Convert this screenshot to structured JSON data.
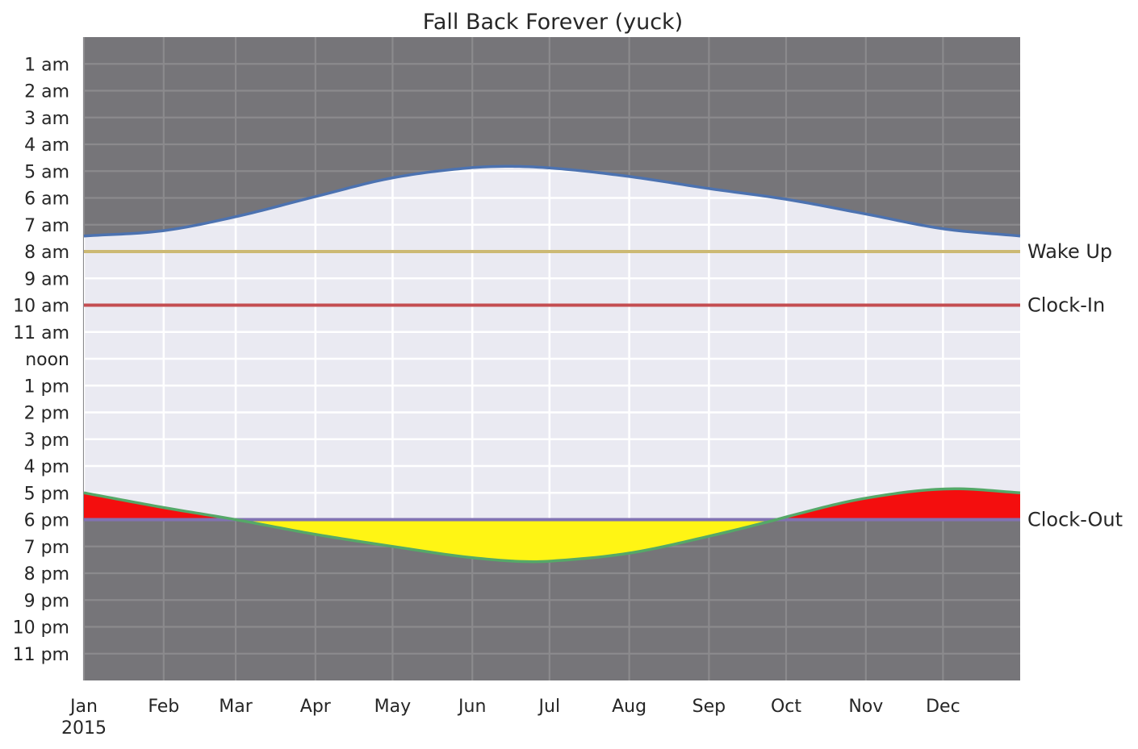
{
  "chart_data": {
    "type": "area",
    "title": "Fall Back Forever (yuck)",
    "xlabel": "",
    "ylabel": "",
    "x_range": [
      "2015-01-01",
      "2015-12-31"
    ],
    "x_ticks": [
      {
        "date": "2015-01-01",
        "label": "Jan",
        "sublabel": "2015"
      },
      {
        "date": "2015-02-01",
        "label": "Feb"
      },
      {
        "date": "2015-03-01",
        "label": "Mar"
      },
      {
        "date": "2015-04-01",
        "label": "Apr"
      },
      {
        "date": "2015-05-01",
        "label": "May"
      },
      {
        "date": "2015-06-01",
        "label": "Jun"
      },
      {
        "date": "2015-07-01",
        "label": "Jul"
      },
      {
        "date": "2015-08-01",
        "label": "Aug"
      },
      {
        "date": "2015-09-01",
        "label": "Sep"
      },
      {
        "date": "2015-10-01",
        "label": "Oct"
      },
      {
        "date": "2015-11-01",
        "label": "Nov"
      },
      {
        "date": "2015-12-01",
        "label": "Dec"
      }
    ],
    "y_axis": {
      "inverted": true,
      "ylim": [
        0,
        24
      ],
      "ticks": [
        {
          "hour": 1,
          "label": "1 am"
        },
        {
          "hour": 2,
          "label": "2 am"
        },
        {
          "hour": 3,
          "label": "3 am"
        },
        {
          "hour": 4,
          "label": "4 am"
        },
        {
          "hour": 5,
          "label": "5 am"
        },
        {
          "hour": 6,
          "label": "6 am"
        },
        {
          "hour": 7,
          "label": "7 am"
        },
        {
          "hour": 8,
          "label": "8 am"
        },
        {
          "hour": 9,
          "label": "9 am"
        },
        {
          "hour": 10,
          "label": "10 am"
        },
        {
          "hour": 11,
          "label": "11 am"
        },
        {
          "hour": 12,
          "label": "noon"
        },
        {
          "hour": 13,
          "label": "1 pm"
        },
        {
          "hour": 14,
          "label": "2 pm"
        },
        {
          "hour": 15,
          "label": "3 pm"
        },
        {
          "hour": 16,
          "label": "4 pm"
        },
        {
          "hour": 17,
          "label": "5 pm"
        },
        {
          "hour": 18,
          "label": "6 pm"
        },
        {
          "hour": 19,
          "label": "7 pm"
        },
        {
          "hour": 20,
          "label": "8 pm"
        },
        {
          "hour": 21,
          "label": "9 pm"
        },
        {
          "hour": 22,
          "label": "10 pm"
        },
        {
          "hour": 23,
          "label": "11 pm"
        }
      ]
    },
    "grid": true,
    "series": [
      {
        "role": "sunrise",
        "color": "#4c72b0",
        "points": [
          [
            "2015-01-01",
            7.42
          ],
          [
            "2015-02-01",
            7.22
          ],
          [
            "2015-03-01",
            6.7
          ],
          [
            "2015-04-01",
            5.95
          ],
          [
            "2015-05-01",
            5.25
          ],
          [
            "2015-06-01",
            4.87
          ],
          [
            "2015-06-15",
            4.82
          ],
          [
            "2015-07-01",
            4.88
          ],
          [
            "2015-08-01",
            5.2
          ],
          [
            "2015-09-01",
            5.65
          ],
          [
            "2015-10-01",
            6.05
          ],
          [
            "2015-11-01",
            6.6
          ],
          [
            "2015-12-01",
            7.15
          ],
          [
            "2015-12-31",
            7.42
          ]
        ]
      },
      {
        "role": "sunset",
        "color": "#55a868",
        "points": [
          [
            "2015-01-01",
            17.0
          ],
          [
            "2015-02-01",
            17.55
          ],
          [
            "2015-03-01",
            18.0
          ],
          [
            "2015-04-01",
            18.55
          ],
          [
            "2015-05-01",
            19.0
          ],
          [
            "2015-06-01",
            19.42
          ],
          [
            "2015-06-25",
            19.57
          ],
          [
            "2015-07-01",
            19.55
          ],
          [
            "2015-08-01",
            19.25
          ],
          [
            "2015-09-01",
            18.62
          ],
          [
            "2015-09-28",
            17.98
          ],
          [
            "2015-10-01",
            17.9
          ],
          [
            "2015-11-01",
            17.2
          ],
          [
            "2015-12-06",
            16.85
          ],
          [
            "2015-12-31",
            17.0
          ]
        ]
      }
    ],
    "reference_lines": [
      {
        "name": "Wake Up",
        "hour": 8,
        "color": "#ccb974"
      },
      {
        "name": "Clock-In",
        "hour": 10,
        "color": "#c44e52"
      },
      {
        "name": "Clock-Out",
        "hour": 18,
        "color": "#8172b2"
      }
    ],
    "colors": {
      "night": "#767579",
      "day": "#eaeaf2",
      "grid_day": "#ffffff",
      "grid_night": "#8b8a8d",
      "dark_after_work": "#f40e0e",
      "light_after_work": "#fff514"
    }
  }
}
